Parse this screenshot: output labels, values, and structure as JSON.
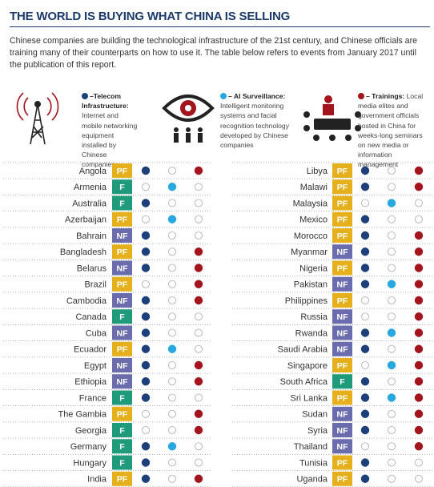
{
  "header": {
    "title": "THE WORLD IS BUYING WHAT CHINA IS SELLING",
    "intro": "Chinese companies are building the technological infrastructure of the 21st century, and Chinese officials are training many of their counterparts on how to use it. The table below refers to events from January 2017 until the publication of this report."
  },
  "legend": [
    {
      "key": "telecom",
      "label": "–Telecom Infrastructure:",
      "description": "Internet and mobile networking equipment installed by Chinese companies"
    },
    {
      "key": "ai",
      "label": "– AI Surveillance:",
      "description": "Intelligent monitoring systems and facial recognition technology developed by Chinese companies"
    },
    {
      "key": "trainings",
      "label": "– Trainings:",
      "description": "Local media elites and government officials hosted in China for weeks-long seminars on new media or information management"
    }
  ],
  "colors": {
    "telecom": "#1d3f7a",
    "ai": "#29a8e0",
    "trainings": "#a3141d",
    "PF": "#e6b01c",
    "F": "#1f9a7a",
    "NF": "#6b6cae"
  },
  "columns": [
    [
      {
        "country": "Angola",
        "status": "PF",
        "telecom": true,
        "ai": false,
        "trainings": true
      },
      {
        "country": "Armenia",
        "status": "F",
        "telecom": false,
        "ai": true,
        "trainings": false
      },
      {
        "country": "Australia",
        "status": "F",
        "telecom": true,
        "ai": false,
        "trainings": false
      },
      {
        "country": "Azerbaijan",
        "status": "PF",
        "telecom": false,
        "ai": true,
        "trainings": false
      },
      {
        "country": "Bahrain",
        "status": "NF",
        "telecom": true,
        "ai": false,
        "trainings": false
      },
      {
        "country": "Bangladesh",
        "status": "PF",
        "telecom": true,
        "ai": false,
        "trainings": true
      },
      {
        "country": "Belarus",
        "status": "NF",
        "telecom": true,
        "ai": false,
        "trainings": true
      },
      {
        "country": "Brazil",
        "status": "PF",
        "telecom": false,
        "ai": false,
        "trainings": true
      },
      {
        "country": "Cambodia",
        "status": "NF",
        "telecom": true,
        "ai": false,
        "trainings": true
      },
      {
        "country": "Canada",
        "status": "F",
        "telecom": true,
        "ai": false,
        "trainings": false
      },
      {
        "country": "Cuba",
        "status": "NF",
        "telecom": true,
        "ai": false,
        "trainings": false
      },
      {
        "country": "Ecuador",
        "status": "PF",
        "telecom": true,
        "ai": true,
        "trainings": false
      },
      {
        "country": "Egypt",
        "status": "NF",
        "telecom": true,
        "ai": false,
        "trainings": true
      },
      {
        "country": "Ethiopia",
        "status": "NF",
        "telecom": true,
        "ai": false,
        "trainings": true
      },
      {
        "country": "France",
        "status": "F",
        "telecom": true,
        "ai": false,
        "trainings": false
      },
      {
        "country": "The Gambia",
        "status": "PF",
        "telecom": false,
        "ai": false,
        "trainings": true
      },
      {
        "country": "Georgia",
        "status": "F",
        "telecom": false,
        "ai": false,
        "trainings": true
      },
      {
        "country": "Germany",
        "status": "F",
        "telecom": true,
        "ai": true,
        "trainings": false
      },
      {
        "country": "Hungary",
        "status": "F",
        "telecom": true,
        "ai": false,
        "trainings": false
      },
      {
        "country": "India",
        "status": "PF",
        "telecom": true,
        "ai": false,
        "trainings": true
      }
    ],
    [
      {
        "country": "Libya",
        "status": "PF",
        "telecom": true,
        "ai": false,
        "trainings": true
      },
      {
        "country": "Malawi",
        "status": "PF",
        "telecom": true,
        "ai": false,
        "trainings": true
      },
      {
        "country": "Malaysia",
        "status": "PF",
        "telecom": false,
        "ai": true,
        "trainings": false
      },
      {
        "country": "Mexico",
        "status": "PF",
        "telecom": true,
        "ai": false,
        "trainings": false
      },
      {
        "country": "Morocco",
        "status": "PF",
        "telecom": true,
        "ai": false,
        "trainings": true
      },
      {
        "country": "Myanmar",
        "status": "NF",
        "telecom": true,
        "ai": false,
        "trainings": true
      },
      {
        "country": "Nigeria",
        "status": "PF",
        "telecom": true,
        "ai": false,
        "trainings": true
      },
      {
        "country": "Pakistan",
        "status": "NF",
        "telecom": true,
        "ai": true,
        "trainings": true
      },
      {
        "country": "Philippines",
        "status": "PF",
        "telecom": false,
        "ai": false,
        "trainings": true
      },
      {
        "country": "Russia",
        "status": "NF",
        "telecom": false,
        "ai": false,
        "trainings": true
      },
      {
        "country": "Rwanda",
        "status": "NF",
        "telecom": true,
        "ai": true,
        "trainings": true
      },
      {
        "country": "Saudi Arabia",
        "status": "NF",
        "telecom": true,
        "ai": false,
        "trainings": true
      },
      {
        "country": "Singapore",
        "status": "PF",
        "telecom": false,
        "ai": true,
        "trainings": true
      },
      {
        "country": "South Africa",
        "status": "F",
        "telecom": true,
        "ai": false,
        "trainings": true
      },
      {
        "country": "Sri Lanka",
        "status": "PF",
        "telecom": true,
        "ai": true,
        "trainings": true
      },
      {
        "country": "Sudan",
        "status": "NF",
        "telecom": true,
        "ai": false,
        "trainings": true
      },
      {
        "country": "Syria",
        "status": "NF",
        "telecom": true,
        "ai": false,
        "trainings": true
      },
      {
        "country": "Thailand",
        "status": "NF",
        "telecom": false,
        "ai": false,
        "trainings": true
      },
      {
        "country": "Tunisia",
        "status": "PF",
        "telecom": true,
        "ai": false,
        "trainings": false
      },
      {
        "country": "Uganda",
        "status": "PF",
        "telecom": true,
        "ai": false,
        "trainings": false
      }
    ]
  ]
}
